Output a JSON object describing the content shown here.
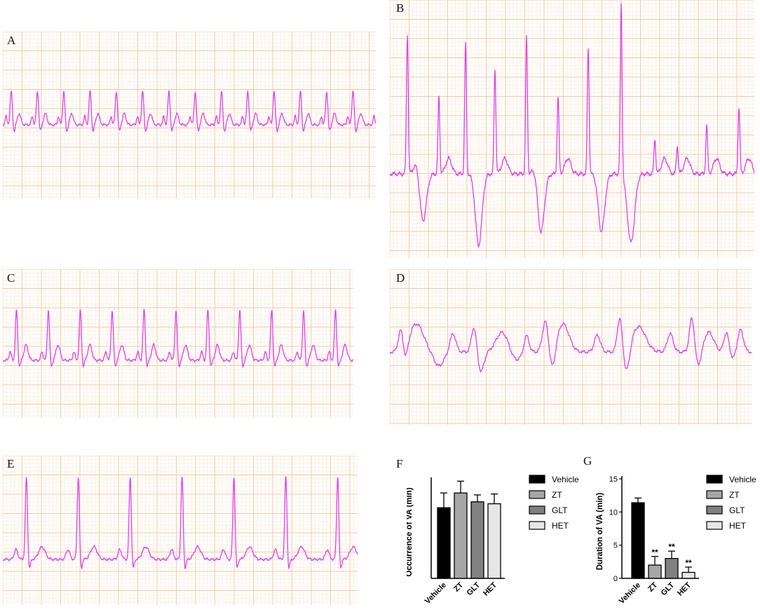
{
  "colors": {
    "trace": "#e040e8",
    "grid_minor": "#fbe3cc",
    "grid_major": "#f6c9a0",
    "bar_vehicle": "#000000",
    "bar_zt": "#a6a6a6",
    "bar_glt": "#808080",
    "bar_het": "#e6e6e6"
  },
  "panels": {
    "A": "A",
    "B": "B",
    "C": "C",
    "D": "D",
    "E": "E",
    "F": "F",
    "G": "G"
  },
  "chart_data": [
    {
      "type": "bar",
      "panel": "F",
      "categories": [
        "Vehicle",
        "ZT",
        "GLT",
        "HET"
      ],
      "values": [
        3.6,
        4.35,
        3.9,
        3.8
      ],
      "errors": [
        0.75,
        0.6,
        0.35,
        0.5
      ],
      "significance": [
        "",
        "",
        "",
        ""
      ],
      "ylabel": "Occurrence of VA (min)",
      "ylim": [
        0,
        5
      ],
      "yticks": [],
      "legend": [
        "Vehicle",
        "ZT",
        "GLT",
        "HET"
      ],
      "legend_position": "right"
    },
    {
      "type": "bar",
      "panel": "G",
      "categories": [
        "Vehicle",
        "ZT",
        "GLT",
        "HET"
      ],
      "values": [
        11.4,
        2.0,
        3.0,
        0.9
      ],
      "errors": [
        0.7,
        1.3,
        1.1,
        0.8
      ],
      "significance": [
        "",
        "**",
        "**",
        "**"
      ],
      "ylabel": "Duration of VA (min)",
      "ylim": [
        0,
        15
      ],
      "yticks": [
        "0",
        "5",
        "10",
        "15"
      ],
      "legend": [
        "Vehicle",
        "ZT",
        "GLT",
        "HET"
      ],
      "legend_position": "right"
    }
  ]
}
